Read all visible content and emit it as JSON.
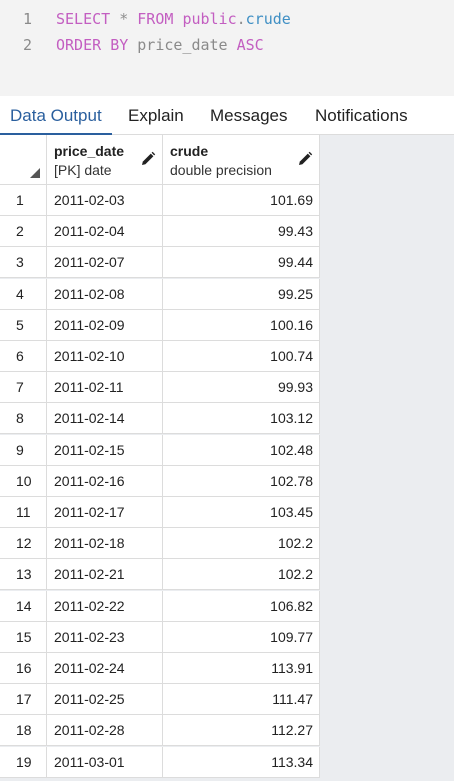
{
  "editor": {
    "lines": [
      {
        "number": "1",
        "tokens": [
          {
            "text": "SELECT",
            "cls": "kw"
          },
          {
            "text": " "
          },
          {
            "text": "*",
            "cls": "op"
          },
          {
            "text": " "
          },
          {
            "text": "FROM",
            "cls": "kw"
          },
          {
            "text": " "
          },
          {
            "text": "public",
            "cls": "kw"
          },
          {
            "text": ".",
            "cls": "op"
          },
          {
            "text": "crude",
            "cls": "fld"
          }
        ]
      },
      {
        "number": "2",
        "tokens": [
          {
            "text": "ORDER",
            "cls": "kw"
          },
          {
            "text": " "
          },
          {
            "text": "BY",
            "cls": "kw"
          },
          {
            "text": " "
          },
          {
            "text": "price_date",
            "cls": "id"
          },
          {
            "text": " "
          },
          {
            "text": "ASC",
            "cls": "kw"
          }
        ]
      }
    ]
  },
  "tabs": [
    "Data Output",
    "Explain",
    "Messages",
    "Notifications"
  ],
  "active_tab": "Data Output",
  "grid": {
    "columns": [
      {
        "name": "price_date",
        "type": "[PK] date"
      },
      {
        "name": "crude",
        "type": "double precision"
      }
    ],
    "rows": [
      {
        "n": "1",
        "date": "2011-02-03",
        "crude": "101.69"
      },
      {
        "n": "2",
        "date": "2011-02-04",
        "crude": "99.43"
      },
      {
        "n": "3",
        "date": "2011-02-07",
        "crude": "99.44"
      },
      {
        "n": "4",
        "date": "2011-02-08",
        "crude": "99.25"
      },
      {
        "n": "5",
        "date": "2011-02-09",
        "crude": "100.16"
      },
      {
        "n": "6",
        "date": "2011-02-10",
        "crude": "100.74"
      },
      {
        "n": "7",
        "date": "2011-02-11",
        "crude": "99.93"
      },
      {
        "n": "8",
        "date": "2011-02-14",
        "crude": "103.12"
      },
      {
        "n": "9",
        "date": "2011-02-15",
        "crude": "102.48"
      },
      {
        "n": "10",
        "date": "2011-02-16",
        "crude": "102.78"
      },
      {
        "n": "11",
        "date": "2011-02-17",
        "crude": "103.45"
      },
      {
        "n": "12",
        "date": "2011-02-18",
        "crude": "102.2"
      },
      {
        "n": "13",
        "date": "2011-02-21",
        "crude": "102.2"
      },
      {
        "n": "14",
        "date": "2011-02-22",
        "crude": "106.82"
      },
      {
        "n": "15",
        "date": "2011-02-23",
        "crude": "109.77"
      },
      {
        "n": "16",
        "date": "2011-02-24",
        "crude": "113.91"
      },
      {
        "n": "17",
        "date": "2011-02-25",
        "crude": "111.47"
      },
      {
        "n": "18",
        "date": "2011-02-28",
        "crude": "112.27"
      },
      {
        "n": "19",
        "date": "2011-03-01",
        "crude": "113.34"
      }
    ]
  }
}
